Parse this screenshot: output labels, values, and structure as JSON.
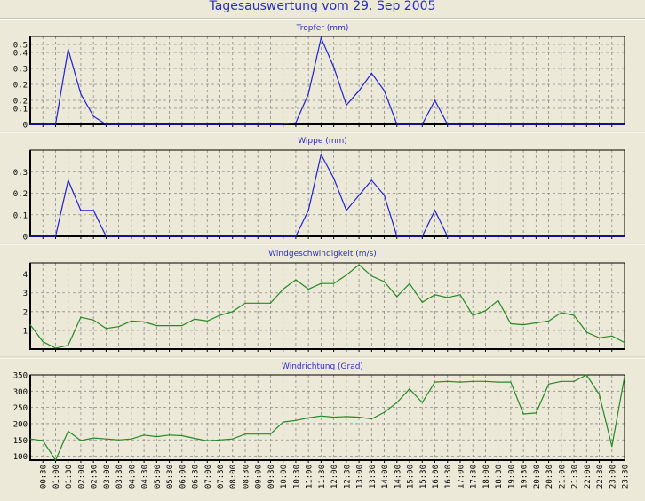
{
  "title": "Tagesauswertung vom 29. Sep 2005",
  "colors": {
    "blue": "#2020d8",
    "green": "#238a23",
    "grid": "#8a8a8a",
    "title": "#2a2acc"
  },
  "chart_data": [
    {
      "type": "line",
      "title": "Tropfer (mm)",
      "color": "blue",
      "ylim": [
        0,
        0.55
      ],
      "yticks": [
        0,
        0.1,
        0.15,
        0.25,
        0.35,
        0.45,
        0.5
      ],
      "ytick_labels": [
        "0",
        "0,1",
        "0,2",
        "0,2",
        "0,3",
        "0,4",
        "0,5"
      ],
      "values": [
        0,
        0,
        0,
        0.47,
        0.19,
        0.05,
        0,
        0,
        0,
        0,
        0,
        0,
        0,
        0,
        0,
        0,
        0,
        0,
        0,
        0,
        0,
        0.01,
        0.19,
        0.54,
        0.36,
        0.12,
        0.21,
        0.32,
        0.21,
        0,
        0,
        0,
        0.15,
        0,
        0,
        0,
        0,
        0,
        0,
        0,
        0,
        0,
        0,
        0,
        0,
        0,
        0,
        0
      ]
    },
    {
      "type": "line",
      "title": "Wippe (mm)",
      "color": "blue",
      "ylim": [
        0,
        0.4
      ],
      "yticks": [
        0,
        0.1,
        0.2,
        0.3
      ],
      "ytick_labels": [
        "0",
        "0,1",
        "0,2",
        "0,3"
      ],
      "values": [
        0,
        0,
        0,
        0.26,
        0.12,
        0.12,
        0,
        0,
        0,
        0,
        0,
        0,
        0,
        0,
        0,
        0,
        0,
        0,
        0,
        0,
        0,
        0,
        0.12,
        0.38,
        0.27,
        0.12,
        0.19,
        0.26,
        0.19,
        0,
        0,
        0,
        0.12,
        0,
        0,
        0,
        0,
        0,
        0,
        0,
        0,
        0,
        0,
        0,
        0,
        0,
        0,
        0
      ]
    },
    {
      "type": "line",
      "title": "Windgeschwindigkeit (m/s)",
      "color": "green",
      "ylim": [
        0,
        4.6
      ],
      "yticks": [
        1,
        2,
        3,
        4
      ],
      "ytick_labels": [
        "1",
        "2",
        "3",
        "4"
      ],
      "values": [
        1.3,
        0.4,
        0.05,
        0.2,
        1.7,
        1.55,
        1.1,
        1.2,
        1.5,
        1.45,
        1.25,
        1.25,
        1.25,
        1.6,
        1.5,
        1.8,
        2.0,
        2.45,
        2.45,
        2.45,
        3.2,
        3.7,
        3.2,
        3.5,
        3.5,
        3.95,
        4.5,
        3.9,
        3.6,
        2.8,
        3.5,
        2.5,
        2.9,
        2.75,
        2.9,
        1.8,
        2.05,
        2.6,
        1.35,
        1.3,
        1.4,
        1.5,
        1.95,
        1.8,
        0.9,
        0.6,
        0.7,
        0.35
      ]
    },
    {
      "type": "line",
      "title": "Windrichtung (Grad)",
      "color": "green",
      "ylim": [
        88,
        350
      ],
      "yticks": [
        100,
        150,
        200,
        250,
        300,
        350
      ],
      "ytick_labels": [
        "100",
        "150",
        "200",
        "250",
        "300",
        "350"
      ],
      "values": [
        153,
        148,
        88,
        177,
        148,
        156,
        153,
        150,
        153,
        165,
        160,
        165,
        163,
        155,
        147,
        150,
        153,
        168,
        168,
        168,
        205,
        210,
        218,
        224,
        220,
        222,
        220,
        215,
        235,
        265,
        307,
        265,
        328,
        330,
        328,
        330,
        330,
        328,
        328,
        230,
        233,
        322,
        330,
        330,
        350,
        290,
        130,
        345
      ]
    }
  ],
  "x_labels": [
    "00:30",
    "01:00",
    "01:30",
    "02:00",
    "02:30",
    "03:00",
    "03:30",
    "04:00",
    "04:30",
    "05:00",
    "05:30",
    "06:00",
    "06:30",
    "07:00",
    "07:30",
    "08:00",
    "08:30",
    "09:00",
    "09:30",
    "10:00",
    "10:30",
    "11:00",
    "11:30",
    "12:00",
    "12:30",
    "13:00",
    "13:30",
    "14:00",
    "14:30",
    "15:00",
    "15:30",
    "16:00",
    "16:30",
    "17:00",
    "17:30",
    "18:00",
    "18:30",
    "19:00",
    "19:30",
    "20:00",
    "20:30",
    "21:00",
    "21:30",
    "22:00",
    "22:30",
    "23:00",
    "23:30"
  ]
}
